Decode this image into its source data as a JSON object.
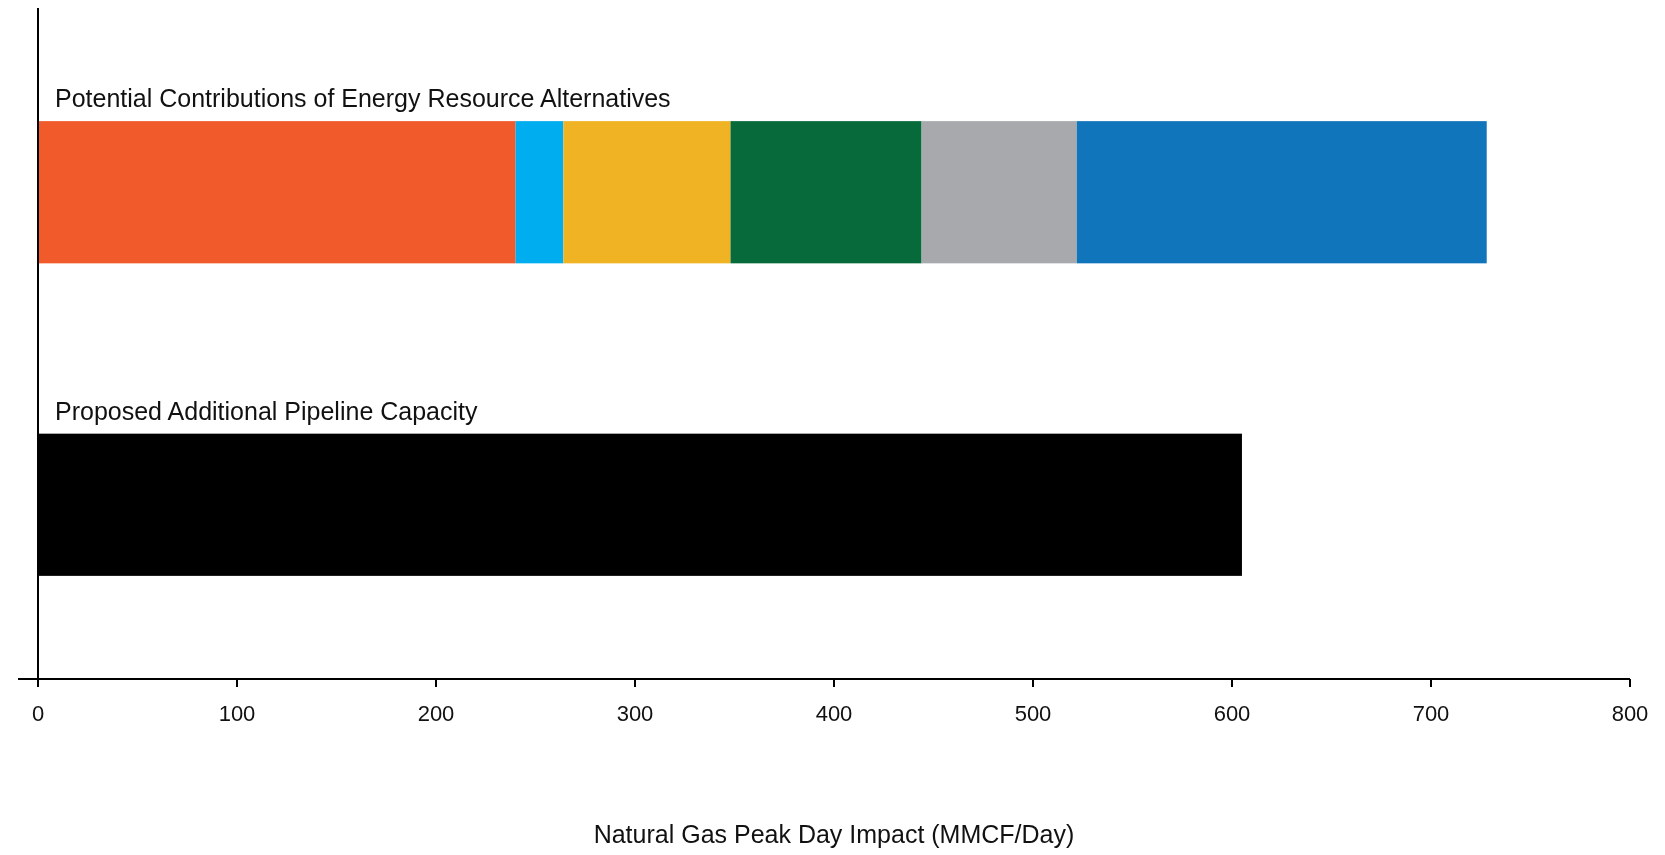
{
  "chart_data": {
    "type": "bar",
    "orientation": "horizontal",
    "stacked": true,
    "xlabel": "Natural Gas Peak Day Impact (MMCF/Day)",
    "categories": [
      "Potential Contributions of Energy Resource Alternatives",
      "Proposed Additional Pipeline Capacity"
    ],
    "series": [
      {
        "color": "#f15a2b",
        "values": [
          240,
          null
        ]
      },
      {
        "color": "#00aeef",
        "values": [
          24,
          null
        ]
      },
      {
        "color": "#f0b323",
        "values": [
          84,
          null
        ]
      },
      {
        "color": "#066a3a",
        "values": [
          96,
          null
        ]
      },
      {
        "color": "#a7a9ac",
        "values": [
          78,
          null
        ]
      },
      {
        "color": "#1175bb",
        "values": [
          206,
          null
        ]
      },
      {
        "color": "#000000",
        "values": [
          null,
          605
        ]
      }
    ],
    "xlim": [
      0,
      800
    ],
    "xticks": [
      0,
      100,
      200,
      300,
      400,
      500,
      600,
      700,
      800
    ]
  }
}
